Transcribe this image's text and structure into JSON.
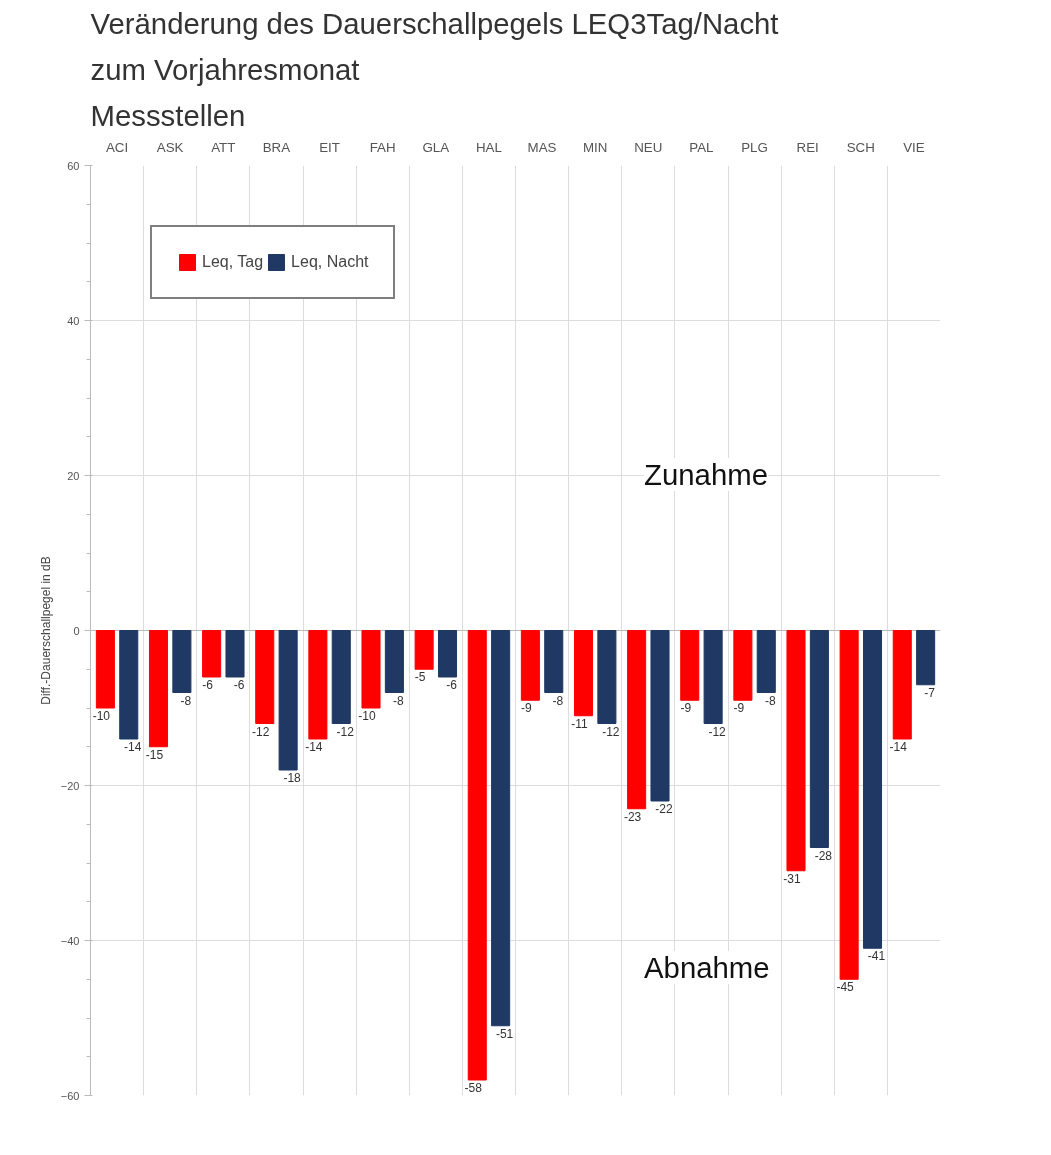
{
  "chart_data": {
    "type": "bar",
    "title": "Veränderung des Dauerschallpegels LEQ3Tag/Nacht\nzum Vorjahresmonat",
    "subtitle": "Messstellen",
    "ylabel": "Diff.-Dauerschallpegel in dB",
    "categories": [
      "ACI",
      "ASK",
      "ATT",
      "BRA",
      "EIT",
      "FAH",
      "GLA",
      "HAL",
      "MAS",
      "MIN",
      "NEU",
      "PAL",
      "PLG",
      "REI",
      "SCH",
      "VIE"
    ],
    "series": [
      {
        "name": "Leq, Tag",
        "color": "#ff0000",
        "values": [
          -10,
          -15,
          -6,
          -12,
          -14,
          -10,
          -5,
          -58,
          -9,
          -11,
          -23,
          -9,
          -9,
          -31,
          -45,
          -14
        ]
      },
      {
        "name": "Leq, Nacht",
        "color": "#1f3864",
        "values": [
          -14,
          -8,
          -6,
          -18,
          -12,
          -8,
          -6,
          -51,
          -8,
          -12,
          -22,
          -12,
          -8,
          -28,
          -41,
          -7
        ]
      }
    ],
    "ylim": [
      -60,
      60
    ],
    "yticks": [
      -60,
      -40,
      -20,
      0,
      20,
      40,
      60
    ],
    "grid": true,
    "legend": "top left",
    "data_labels": true,
    "annotations": [
      "Zunahme",
      "Abnahme"
    ]
  }
}
